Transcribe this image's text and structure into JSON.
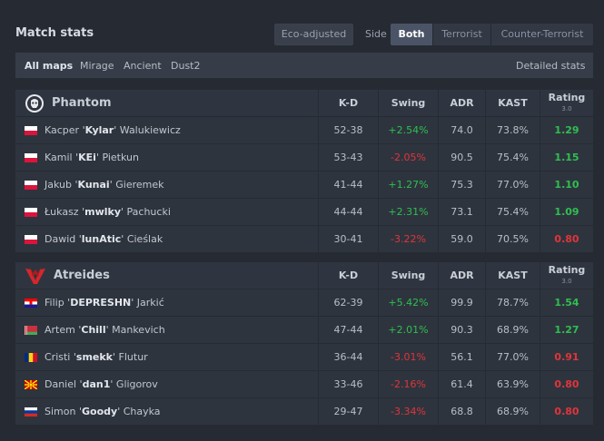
{
  "title": "Match stats",
  "toolbar": {
    "eco_label": "Eco-adjusted",
    "side_label": "Side",
    "sides": [
      "Both",
      "Terrorist",
      "Counter-Terrorist"
    ],
    "active_side": "Both"
  },
  "maps": {
    "items": [
      "All maps",
      "Mirage",
      "Ancient",
      "Dust2"
    ],
    "active": "All maps",
    "detailed_label": "Detailed stats"
  },
  "columns": {
    "kd": "K-D",
    "swing": "Swing",
    "adr": "ADR",
    "kast": "KAST",
    "rating": "Rating",
    "rating_version": "3.0"
  },
  "colors": {
    "positive": "#2fbf4f",
    "negative": "#e0353a"
  },
  "teams": [
    {
      "name": "Phantom",
      "logo": "phantom-logo",
      "players": [
        {
          "first": "Kacper",
          "nick": "Kylar",
          "last": "Walukiewicz",
          "flag": "pl",
          "kd": "52-38",
          "swing": "+2.54%",
          "adr": "74.0",
          "kast": "73.8%",
          "rating": "1.29"
        },
        {
          "first": "Kamil",
          "nick": "KEi",
          "last": "Pietkun",
          "flag": "pl",
          "kd": "53-43",
          "swing": "-2.05%",
          "adr": "90.5",
          "kast": "75.4%",
          "rating": "1.15"
        },
        {
          "first": "Jakub",
          "nick": "Kunai",
          "last": "Gieremek",
          "flag": "pl",
          "kd": "41-44",
          "swing": "+1.27%",
          "adr": "75.3",
          "kast": "77.0%",
          "rating": "1.10"
        },
        {
          "first": "Łukasz",
          "nick": "mwlky",
          "last": "Pachucki",
          "flag": "pl",
          "kd": "44-44",
          "swing": "+2.31%",
          "adr": "73.1",
          "kast": "75.4%",
          "rating": "1.09"
        },
        {
          "first": "Dawid",
          "nick": "lunAtic",
          "last": "Cieślak",
          "flag": "pl",
          "kd": "30-41",
          "swing": "-3.22%",
          "adr": "59.0",
          "kast": "70.5%",
          "rating": "0.80"
        }
      ]
    },
    {
      "name": "Atreides",
      "logo": "atreides-logo",
      "players": [
        {
          "first": "Filip",
          "nick": "DEPRESHN",
          "last": "Jarkić",
          "flag": "hr",
          "kd": "62-39",
          "swing": "+5.42%",
          "adr": "99.9",
          "kast": "78.7%",
          "rating": "1.54"
        },
        {
          "first": "Artem",
          "nick": "Chill",
          "last": "Mankevich",
          "flag": "by",
          "kd": "47-44",
          "swing": "+2.01%",
          "adr": "90.3",
          "kast": "68.9%",
          "rating": "1.27"
        },
        {
          "first": "Cristi",
          "nick": "smekk",
          "last": "Flutur",
          "flag": "ro",
          "kd": "36-44",
          "swing": "-3.01%",
          "adr": "56.1",
          "kast": "77.0%",
          "rating": "0.91"
        },
        {
          "first": "Daniel",
          "nick": "dan1",
          "last": "Gligorov",
          "flag": "mk",
          "kd": "33-46",
          "swing": "-2.16%",
          "adr": "61.4",
          "kast": "63.9%",
          "rating": "0.80"
        },
        {
          "first": "Simon",
          "nick": "Goody",
          "last": "Chayka",
          "flag": "ru",
          "kd": "29-47",
          "swing": "-3.34%",
          "adr": "68.8",
          "kast": "68.9%",
          "rating": "0.80"
        }
      ]
    }
  ]
}
